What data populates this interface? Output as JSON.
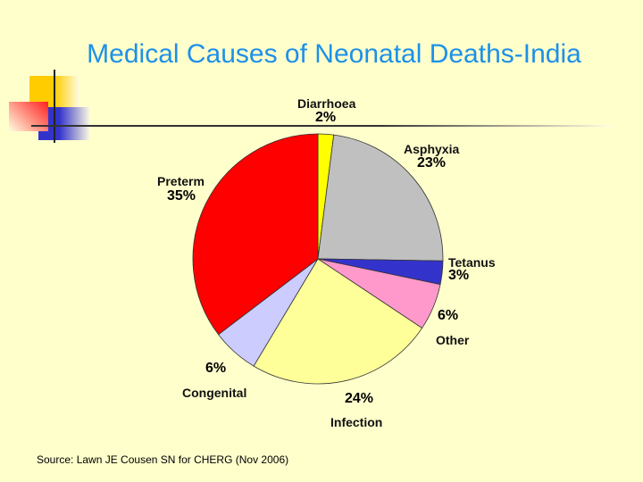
{
  "title": "Medical Causes of Neonatal Deaths-India",
  "source": "Source: Lawn JE Cousen SN for CHERG (Nov 2006)",
  "chart_data": {
    "type": "pie",
    "title": "",
    "start": "top",
    "direction": "clockwise",
    "slices": [
      {
        "label": "Diarrhoea",
        "value": 2,
        "display": "2%",
        "color": "#ffff00"
      },
      {
        "label": "Asphyxia",
        "value": 23,
        "display": "23%",
        "color": "#c0c0c0"
      },
      {
        "label": "Tetanus",
        "value": 3,
        "display": "3%",
        "color": "#3333cc"
      },
      {
        "label": "Other",
        "value": 6,
        "display": "6%",
        "color": "#ff99cc"
      },
      {
        "label": "Infection",
        "value": 24,
        "display": "24%",
        "color": "#ffff99"
      },
      {
        "label": "Congenital",
        "value": 6,
        "display": "6%",
        "color": "#ccccff"
      },
      {
        "label": "Preterm",
        "value": 35,
        "display": "35%",
        "color": "#ff0000"
      }
    ]
  }
}
